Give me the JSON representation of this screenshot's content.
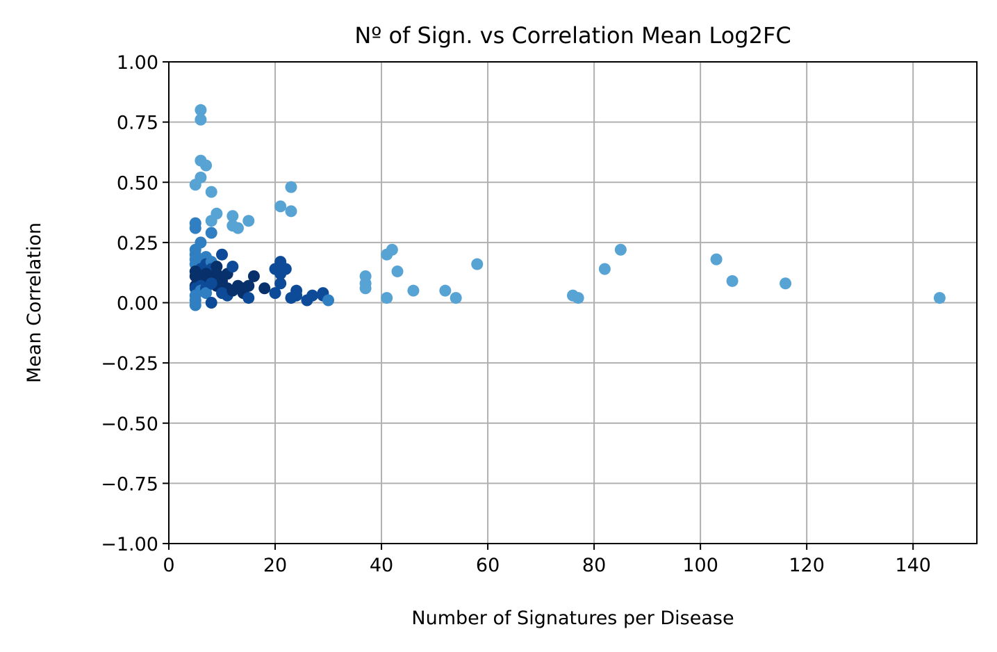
{
  "chart_data": {
    "type": "scatter",
    "title": "Nº of Sign. vs Correlation Mean Log2FC",
    "xlabel": "Number of Signatures per Disease",
    "ylabel": "Mean Correlation",
    "xlim": [
      0,
      152
    ],
    "ylim": [
      -1.0,
      1.0
    ],
    "xticks": [
      0,
      20,
      40,
      60,
      80,
      100,
      120,
      140
    ],
    "yticks": [
      -1.0,
      -0.75,
      -0.5,
      -0.25,
      0.0,
      0.25,
      0.5,
      0.75,
      1.0
    ],
    "xtick_labels": [
      "0",
      "20",
      "40",
      "60",
      "80",
      "100",
      "120",
      "140"
    ],
    "ytick_labels": [
      "−1.00",
      "−0.75",
      "−0.50",
      "−0.25",
      "0.00",
      "0.25",
      "0.50",
      "0.75",
      "1.00"
    ],
    "grid": true,
    "colors": {
      "light": "#57a3d4",
      "mid": "#2f7fc2",
      "dark": "#0d4a97",
      "darkest": "#08306b",
      "grid": "#b0b0b0"
    },
    "series": [
      {
        "points": [
          {
            "x": 6,
            "y": 0.8,
            "c": "light"
          },
          {
            "x": 6,
            "y": 0.76,
            "c": "light"
          },
          {
            "x": 6,
            "y": 0.59,
            "c": "light"
          },
          {
            "x": 7,
            "y": 0.57,
            "c": "light"
          },
          {
            "x": 6,
            "y": 0.52,
            "c": "light"
          },
          {
            "x": 5,
            "y": 0.49,
            "c": "light"
          },
          {
            "x": 8,
            "y": 0.46,
            "c": "light"
          },
          {
            "x": 9,
            "y": 0.37,
            "c": "light"
          },
          {
            "x": 8,
            "y": 0.34,
            "c": "light"
          },
          {
            "x": 5,
            "y": 0.33,
            "c": "mid"
          },
          {
            "x": 5,
            "y": 0.31,
            "c": "mid"
          },
          {
            "x": 8,
            "y": 0.29,
            "c": "mid"
          },
          {
            "x": 12,
            "y": 0.36,
            "c": "light"
          },
          {
            "x": 12,
            "y": 0.32,
            "c": "light"
          },
          {
            "x": 13,
            "y": 0.31,
            "c": "light"
          },
          {
            "x": 15,
            "y": 0.34,
            "c": "light"
          },
          {
            "x": 21,
            "y": 0.4,
            "c": "light"
          },
          {
            "x": 23,
            "y": 0.48,
            "c": "light"
          },
          {
            "x": 23,
            "y": 0.38,
            "c": "light"
          },
          {
            "x": 6,
            "y": 0.25,
            "c": "mid"
          },
          {
            "x": 5,
            "y": 0.22,
            "c": "mid"
          },
          {
            "x": 5,
            "y": 0.2,
            "c": "mid"
          },
          {
            "x": 5,
            "y": 0.18,
            "c": "mid"
          },
          {
            "x": 5,
            "y": 0.16,
            "c": "mid"
          },
          {
            "x": 6,
            "y": 0.17,
            "c": "mid"
          },
          {
            "x": 7,
            "y": 0.19,
            "c": "mid"
          },
          {
            "x": 7,
            "y": 0.16,
            "c": "dark"
          },
          {
            "x": 8,
            "y": 0.17,
            "c": "mid"
          },
          {
            "x": 8,
            "y": 0.14,
            "c": "dark"
          },
          {
            "x": 6,
            "y": 0.14,
            "c": "dark"
          },
          {
            "x": 5,
            "y": 0.13,
            "c": "darkest"
          },
          {
            "x": 5,
            "y": 0.11,
            "c": "darkest"
          },
          {
            "x": 6,
            "y": 0.11,
            "c": "darkest"
          },
          {
            "x": 7,
            "y": 0.12,
            "c": "darkest"
          },
          {
            "x": 7,
            "y": 0.1,
            "c": "darkest"
          },
          {
            "x": 8,
            "y": 0.11,
            "c": "darkest"
          },
          {
            "x": 9,
            "y": 0.15,
            "c": "darkest"
          },
          {
            "x": 9,
            "y": 0.12,
            "c": "darkest"
          },
          {
            "x": 10,
            "y": 0.2,
            "c": "dark"
          },
          {
            "x": 10,
            "y": 0.09,
            "c": "darkest"
          },
          {
            "x": 11,
            "y": 0.12,
            "c": "darkest"
          },
          {
            "x": 12,
            "y": 0.15,
            "c": "dark"
          },
          {
            "x": 9,
            "y": 0.07,
            "c": "darkest"
          },
          {
            "x": 10,
            "y": 0.07,
            "c": "darkest"
          },
          {
            "x": 11,
            "y": 0.06,
            "c": "darkest"
          },
          {
            "x": 5,
            "y": 0.07,
            "c": "darkest"
          },
          {
            "x": 5,
            "y": 0.06,
            "c": "dark"
          },
          {
            "x": 6,
            "y": 0.07,
            "c": "dark"
          },
          {
            "x": 6,
            "y": 0.05,
            "c": "mid"
          },
          {
            "x": 7,
            "y": 0.06,
            "c": "dark"
          },
          {
            "x": 7,
            "y": 0.04,
            "c": "mid"
          },
          {
            "x": 8,
            "y": 0.08,
            "c": "dark"
          },
          {
            "x": 5,
            "y": 0.03,
            "c": "mid"
          },
          {
            "x": 5,
            "y": 0.01,
            "c": "mid"
          },
          {
            "x": 5,
            "y": -0.01,
            "c": "mid"
          },
          {
            "x": 8,
            "y": 0.0,
            "c": "dark"
          },
          {
            "x": 10,
            "y": 0.04,
            "c": "dark"
          },
          {
            "x": 11,
            "y": 0.03,
            "c": "dark"
          },
          {
            "x": 12,
            "y": 0.05,
            "c": "darkest"
          },
          {
            "x": 13,
            "y": 0.07,
            "c": "darkest"
          },
          {
            "x": 14,
            "y": 0.04,
            "c": "darkest"
          },
          {
            "x": 14,
            "y": 0.06,
            "c": "darkest"
          },
          {
            "x": 15,
            "y": 0.07,
            "c": "darkest"
          },
          {
            "x": 15,
            "y": 0.02,
            "c": "dark"
          },
          {
            "x": 16,
            "y": 0.11,
            "c": "darkest"
          },
          {
            "x": 18,
            "y": 0.06,
            "c": "darkest"
          },
          {
            "x": 20,
            "y": 0.14,
            "c": "dark"
          },
          {
            "x": 20,
            "y": 0.04,
            "c": "dark"
          },
          {
            "x": 21,
            "y": 0.17,
            "c": "dark"
          },
          {
            "x": 21,
            "y": 0.12,
            "c": "dark"
          },
          {
            "x": 21,
            "y": 0.08,
            "c": "dark"
          },
          {
            "x": 22,
            "y": 0.14,
            "c": "dark"
          },
          {
            "x": 23,
            "y": 0.02,
            "c": "dark"
          },
          {
            "x": 24,
            "y": 0.05,
            "c": "dark"
          },
          {
            "x": 24,
            "y": 0.03,
            "c": "dark"
          },
          {
            "x": 26,
            "y": 0.01,
            "c": "dark"
          },
          {
            "x": 27,
            "y": 0.03,
            "c": "dark"
          },
          {
            "x": 29,
            "y": 0.04,
            "c": "dark"
          },
          {
            "x": 29,
            "y": 0.03,
            "c": "dark"
          },
          {
            "x": 30,
            "y": 0.01,
            "c": "mid"
          },
          {
            "x": 37,
            "y": 0.11,
            "c": "light"
          },
          {
            "x": 37,
            "y": 0.08,
            "c": "light"
          },
          {
            "x": 37,
            "y": 0.06,
            "c": "light"
          },
          {
            "x": 41,
            "y": 0.2,
            "c": "light"
          },
          {
            "x": 42,
            "y": 0.22,
            "c": "light"
          },
          {
            "x": 41,
            "y": 0.02,
            "c": "light"
          },
          {
            "x": 43,
            "y": 0.13,
            "c": "light"
          },
          {
            "x": 46,
            "y": 0.05,
            "c": "light"
          },
          {
            "x": 52,
            "y": 0.05,
            "c": "light"
          },
          {
            "x": 54,
            "y": 0.02,
            "c": "light"
          },
          {
            "x": 58,
            "y": 0.16,
            "c": "light"
          },
          {
            "x": 76,
            "y": 0.03,
            "c": "light"
          },
          {
            "x": 77,
            "y": 0.02,
            "c": "light"
          },
          {
            "x": 82,
            "y": 0.14,
            "c": "light"
          },
          {
            "x": 85,
            "y": 0.22,
            "c": "light"
          },
          {
            "x": 103,
            "y": 0.18,
            "c": "light"
          },
          {
            "x": 106,
            "y": 0.09,
            "c": "light"
          },
          {
            "x": 116,
            "y": 0.08,
            "c": "light"
          },
          {
            "x": 145,
            "y": 0.02,
            "c": "light"
          }
        ]
      }
    ]
  }
}
